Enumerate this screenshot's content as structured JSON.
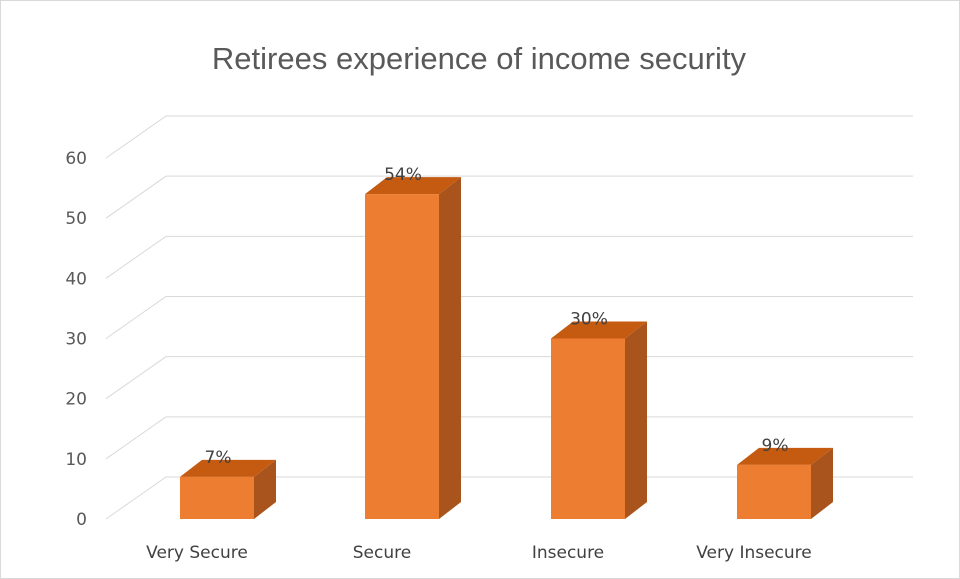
{
  "chart_data": {
    "type": "bar",
    "style": "3d-column",
    "title": "Retirees experience of income security",
    "categories": [
      "Very Secure",
      "Secure",
      "Insecure",
      "Very Insecure"
    ],
    "values": [
      7,
      54,
      30,
      9
    ],
    "data_labels": [
      "7%",
      "54%",
      "30%",
      "9%"
    ],
    "yticks": [
      "0",
      "10",
      "20",
      "30",
      "40",
      "50",
      "60"
    ],
    "ylim": [
      0,
      60
    ],
    "xlabel": "",
    "ylabel": "",
    "grid": true,
    "legend": "none",
    "colors": {
      "bar_front": "#ED7D31",
      "bar_top": "#C55A11",
      "bar_side": "#A8541C",
      "grid": "#D9D9D9"
    }
  }
}
